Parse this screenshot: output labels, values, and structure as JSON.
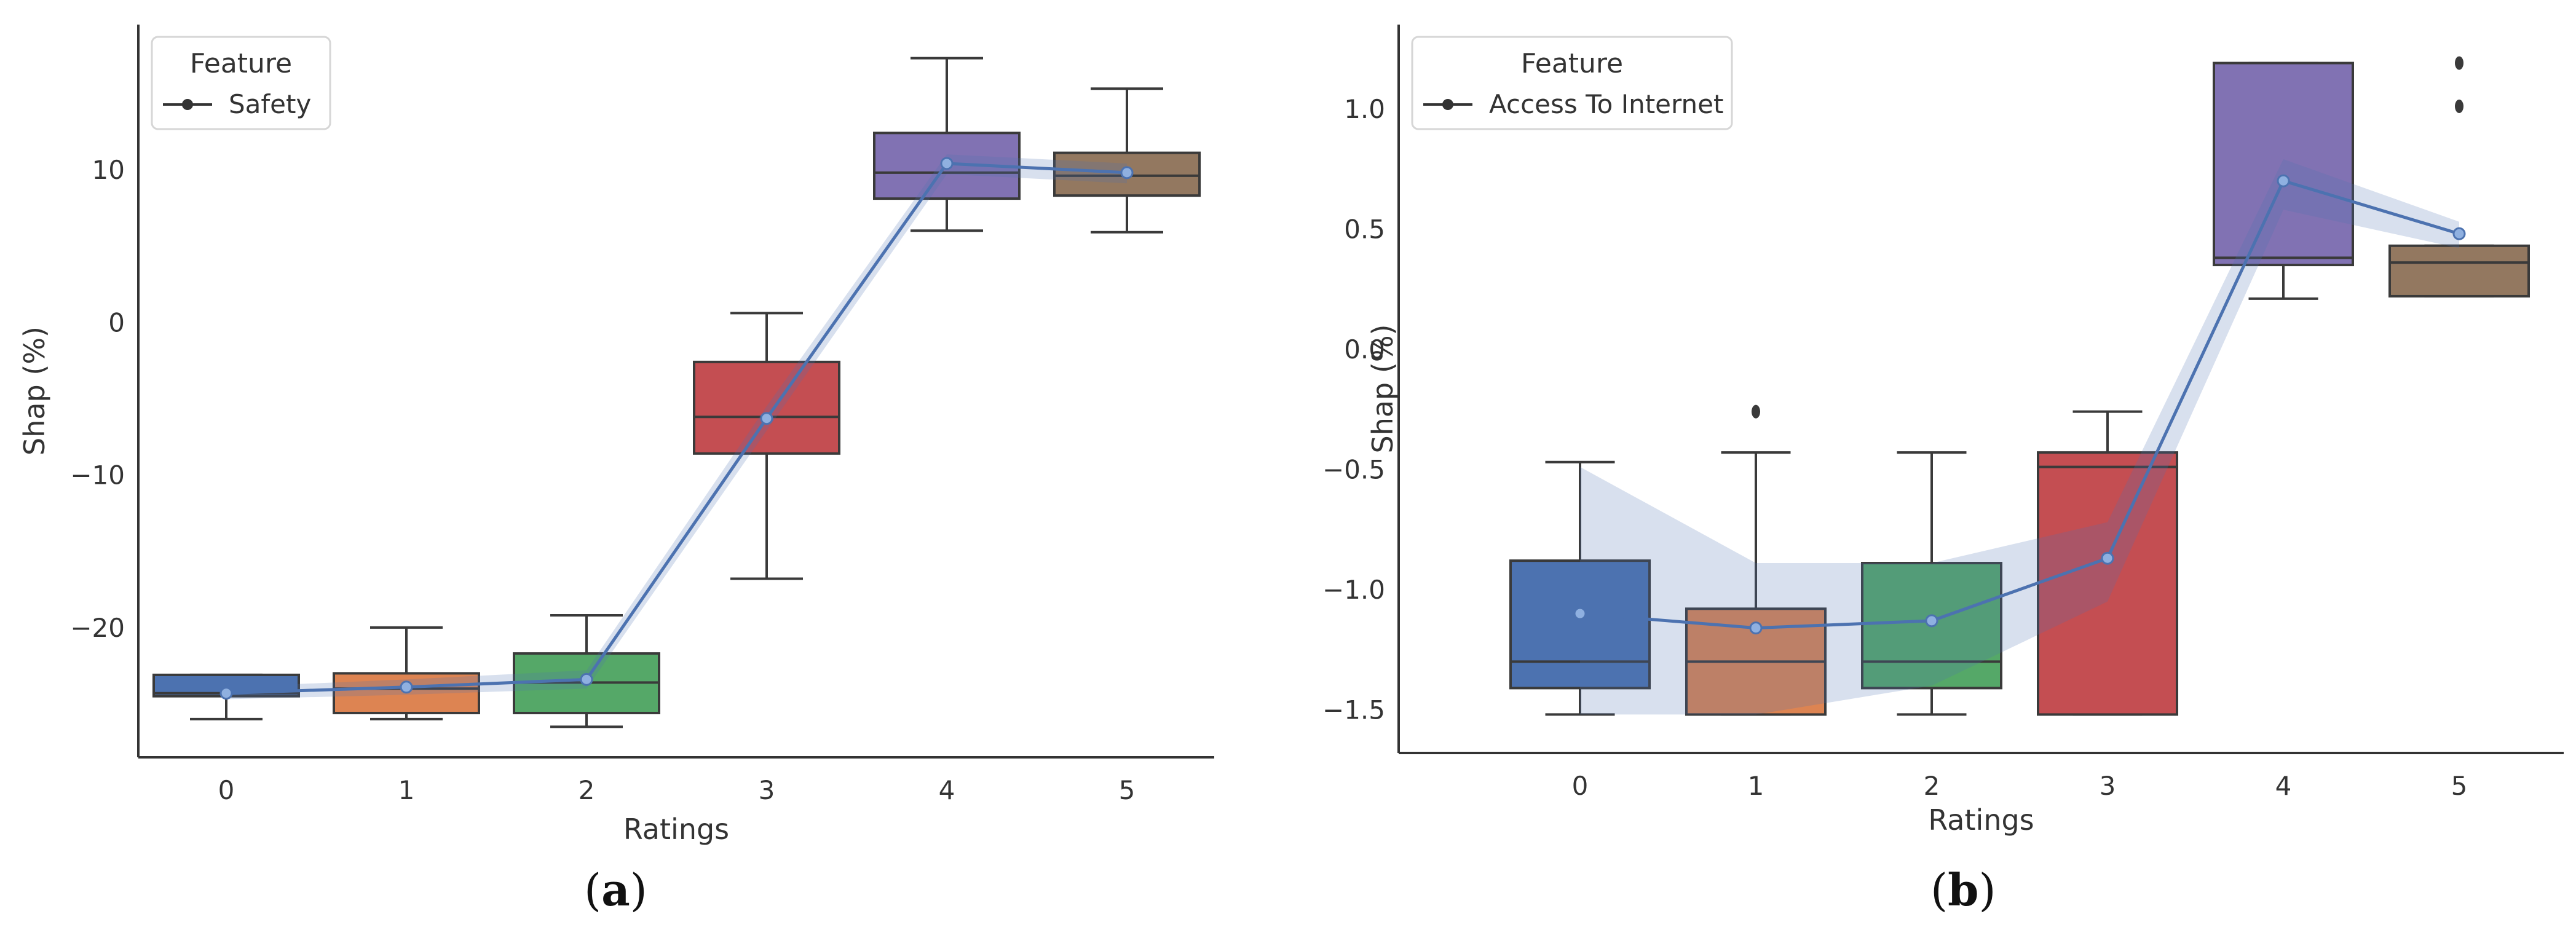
{
  "chart_data": [
    {
      "type": "box",
      "panel": "a",
      "xlabel": "Ratings",
      "ylabel": "Shap (%)",
      "categories": [
        "0",
        "1",
        "2",
        "3",
        "4",
        "5"
      ],
      "yticks": [
        "10",
        "0",
        "−10",
        "−20"
      ],
      "ytick_values": [
        10,
        0,
        -10,
        -20
      ],
      "ylim": [
        -28.5,
        19.5
      ],
      "legend": {
        "title": "Feature",
        "entries": [
          "Safety"
        ],
        "placement": "top-left"
      },
      "boxes": [
        {
          "category": "0",
          "whisker_low": -26.0,
          "q1": -24.5,
          "median": -24.3,
          "q3": -23.1,
          "whisker_high": -23.1,
          "color": "#4c72b0",
          "outliers": []
        },
        {
          "category": "1",
          "whisker_low": -26.0,
          "q1": -25.6,
          "median": -24.0,
          "q3": -23.0,
          "whisker_high": -20.0,
          "color": "#dd8452",
          "outliers": []
        },
        {
          "category": "2",
          "whisker_low": -26.5,
          "q1": -25.6,
          "median": -23.6,
          "q3": -21.7,
          "whisker_high": -19.2,
          "color": "#55a868",
          "outliers": []
        },
        {
          "category": "3",
          "whisker_low": -16.8,
          "q1": -8.6,
          "median": -6.2,
          "q3": -2.6,
          "whisker_high": 0.6,
          "color": "#c44e52",
          "outliers": []
        },
        {
          "category": "4",
          "whisker_low": 6.0,
          "q1": 8.1,
          "median": 9.8,
          "q3": 12.4,
          "whisker_high": 17.3,
          "color": "#8172b3",
          "outliers": []
        },
        {
          "category": "5",
          "whisker_low": 5.9,
          "q1": 8.3,
          "median": 9.6,
          "q3": 11.1,
          "whisker_high": 15.3,
          "color": "#937860",
          "outliers": []
        }
      ],
      "mean_line": {
        "name": "Safety",
        "values": [
          -24.3,
          -23.9,
          -23.4,
          -6.3,
          10.4,
          9.8
        ],
        "ci_low": [
          -24.7,
          -24.4,
          -24.0,
          -7.1,
          9.7,
          9.1
        ],
        "ci_high": [
          -23.9,
          -23.4,
          -22.8,
          -5.5,
          11.0,
          10.4
        ],
        "color": "#4c72b0"
      }
    },
    {
      "type": "box",
      "panel": "b",
      "xlabel": "Ratings",
      "ylabel": "Shap (%)",
      "categories": [
        "0",
        "1",
        "2",
        "3",
        "4",
        "5"
      ],
      "yticks": [
        "1.0",
        "0.5",
        "0.0",
        "−0.5",
        "−1.0",
        "−1.5"
      ],
      "ytick_values": [
        1.0,
        0.5,
        0.0,
        -0.5,
        -1.0,
        -1.5
      ],
      "ylim": [
        -1.68,
        1.35
      ],
      "legend": {
        "title": "Feature",
        "entries": [
          "Access To Internet"
        ],
        "placement": "top-left"
      },
      "boxes": [
        {
          "category": "0",
          "whisker_low": -1.52,
          "q1": -1.41,
          "median": -1.3,
          "q3": -0.88,
          "whisker_high": -0.47,
          "color": "#4c72b0",
          "outliers": []
        },
        {
          "category": "1",
          "whisker_low": -1.52,
          "q1": -1.52,
          "median": -1.3,
          "q3": -1.08,
          "whisker_high": -0.43,
          "color": "#dd8452",
          "outliers": [
            -0.26
          ]
        },
        {
          "category": "2",
          "whisker_low": -1.52,
          "q1": -1.41,
          "median": -1.3,
          "q3": -0.89,
          "whisker_high": -0.43,
          "color": "#55a868",
          "outliers": []
        },
        {
          "category": "3",
          "whisker_low": -1.52,
          "q1": -1.52,
          "median": -0.49,
          "q3": -0.43,
          "whisker_high": -0.26,
          "color": "#c44e52",
          "outliers": []
        },
        {
          "category": "4",
          "whisker_low": 0.21,
          "q1": 0.35,
          "median": 0.38,
          "q3": 1.19,
          "whisker_high": 1.19,
          "color": "#8172b3",
          "outliers": []
        },
        {
          "category": "5",
          "whisker_low": 0.22,
          "q1": 0.22,
          "median": 0.36,
          "q3": 0.43,
          "whisker_high": 0.43,
          "color": "#937860",
          "outliers": [
            1.01,
            1.19
          ]
        }
      ],
      "mean_line": {
        "name": "Access To Internet",
        "values": [
          -1.1,
          -1.16,
          -1.13,
          -0.87,
          0.7,
          0.48
        ],
        "ci_low": [
          -1.52,
          -1.52,
          -1.4,
          -1.05,
          0.58,
          0.42
        ],
        "ci_high": [
          -0.49,
          -0.89,
          -0.89,
          -0.72,
          0.79,
          0.53
        ],
        "color": "#4c72b0"
      }
    }
  ],
  "captions": {
    "a": "a",
    "b": "b"
  }
}
